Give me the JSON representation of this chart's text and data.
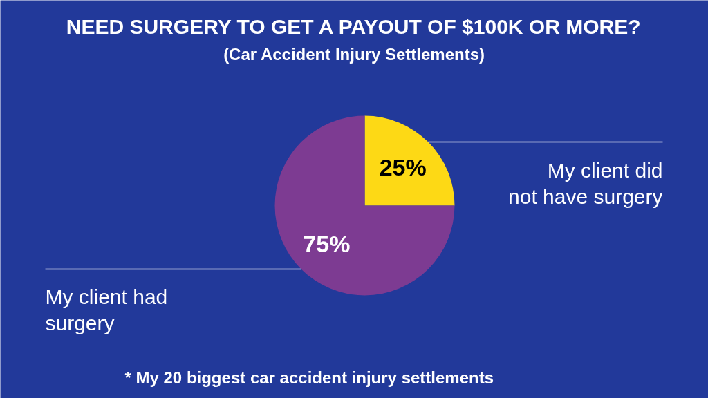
{
  "chart_data": {
    "type": "pie",
    "title": "NEED SURGERY TO GET A PAYOUT OF $100K OR MORE?",
    "subtitle": "(Car Accident Injury Settlements)",
    "categories": [
      "My client did not have surgery",
      "My client had surgery"
    ],
    "values": [
      25,
      75
    ],
    "colors": [
      "#fdd915",
      "#7d3b92"
    ],
    "value_labels": [
      "25%",
      "75%"
    ],
    "annotations": [
      "* My 20 biggest car accident injury settlements"
    ]
  }
}
